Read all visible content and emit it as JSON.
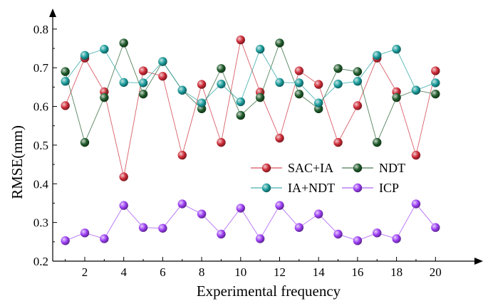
{
  "chart_data": {
    "type": "line",
    "title": "",
    "xlabel": "Experimental frequency",
    "ylabel": "RMSE(mm)",
    "xlim": [
      0.5,
      20.2
    ],
    "ylim": [
      0.2,
      0.85
    ],
    "x": [
      1,
      2,
      3,
      4,
      5,
      6,
      7,
      8,
      9,
      10,
      11,
      12,
      13,
      14,
      15,
      16,
      17,
      18,
      19,
      20
    ],
    "x_ticks": [
      2,
      4,
      6,
      8,
      10,
      12,
      14,
      16,
      18,
      20
    ],
    "x_tick_labels": [
      "2",
      "4",
      "6",
      "8",
      "10",
      "12",
      "14",
      "16",
      "18",
      "20"
    ],
    "y_ticks": [
      0.2,
      0.3,
      0.4,
      0.5,
      0.6,
      0.7,
      0.8
    ],
    "y_tick_labels": [
      "0.2",
      "0.3",
      "0.4",
      "0.5",
      "0.6",
      "0.7",
      "0.8"
    ],
    "legend_position": "middle-right",
    "marker": "sphere",
    "series": [
      {
        "name": "SAC+IA",
        "color": "#cc2a36",
        "values": [
          0.602,
          0.725,
          0.638,
          0.418,
          0.692,
          0.678,
          0.474,
          0.657,
          0.507,
          0.772,
          0.637,
          0.518,
          0.692,
          0.657,
          0.507,
          0.602,
          0.725,
          0.638,
          0.474,
          0.692
        ]
      },
      {
        "name": "NDT",
        "color": "#1f5a2a",
        "values": [
          0.69,
          0.507,
          0.623,
          0.764,
          0.632,
          0.716,
          0.642,
          0.594,
          0.698,
          0.577,
          0.623,
          0.764,
          0.632,
          0.594,
          0.698,
          0.69,
          0.507,
          0.623,
          0.642,
          0.632
        ]
      },
      {
        "name": "IA+NDT",
        "color": "#1a9b9b",
        "values": [
          0.665,
          0.732,
          0.748,
          0.662,
          0.661,
          0.716,
          0.642,
          0.609,
          0.658,
          0.612,
          0.748,
          0.662,
          0.661,
          0.609,
          0.658,
          0.665,
          0.732,
          0.748,
          0.642,
          0.661
        ]
      },
      {
        "name": "ICP",
        "color": "#9b3df2",
        "values": [
          0.253,
          0.273,
          0.258,
          0.344,
          0.287,
          0.285,
          0.348,
          0.322,
          0.27,
          0.337,
          0.258,
          0.344,
          0.287,
          0.322,
          0.27,
          0.253,
          0.273,
          0.258,
          0.348,
          0.287
        ]
      }
    ]
  }
}
